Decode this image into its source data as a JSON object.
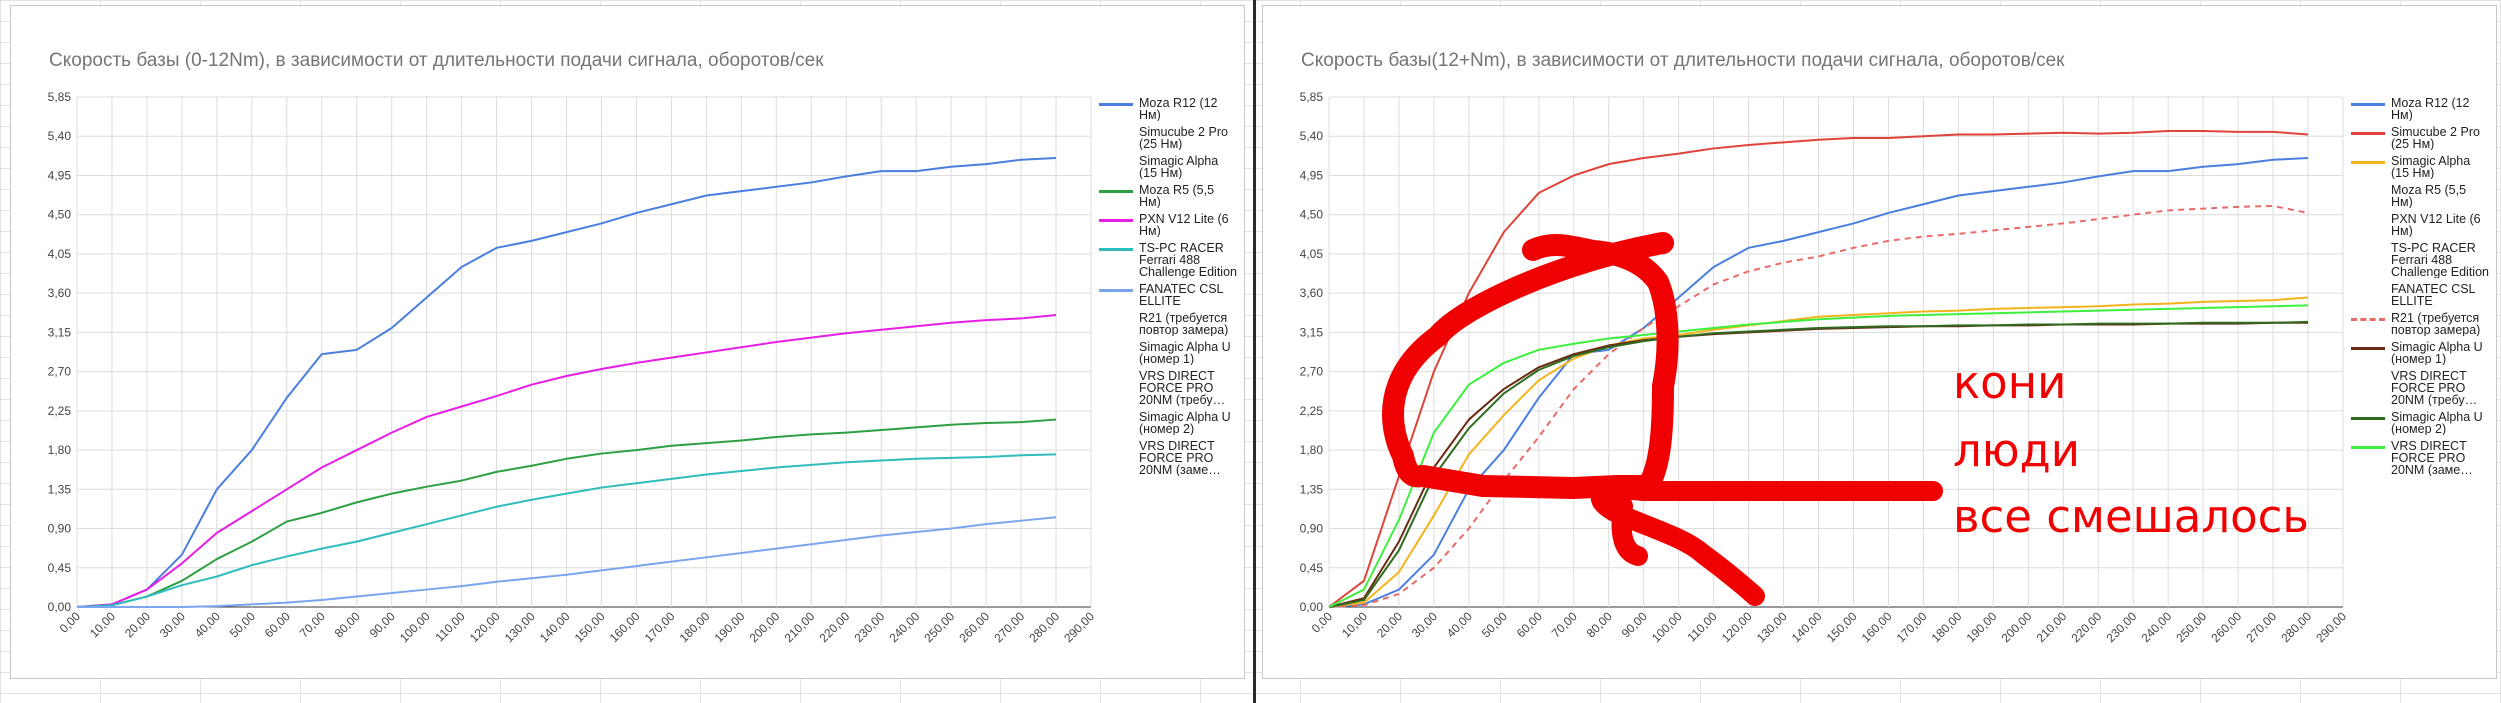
{
  "chart_data": [
    {
      "type": "line",
      "title": "Скорость базы (0-12Nm), в зависимости от длительности подачи сигнала, оборотов/сек",
      "xlabel": "",
      "ylabel": "",
      "xlim": [
        0,
        290
      ],
      "ylim": [
        0,
        5.85
      ],
      "x_ticks": [
        "0,00",
        "10,00",
        "20,00",
        "30,00",
        "40,00",
        "50,00",
        "60,00",
        "70,00",
        "80,00",
        "90,00",
        "100,00",
        "110,00",
        "120,00",
        "130,00",
        "140,00",
        "150,00",
        "160,00",
        "170,00",
        "180,00",
        "190,00",
        "200,00",
        "210,00",
        "220,00",
        "230,00",
        "240,00",
        "250,00",
        "260,00",
        "270,00",
        "280,00",
        "290,00"
      ],
      "y_ticks": [
        "0,00",
        "0,45",
        "0,90",
        "1,35",
        "1,80",
        "2,25",
        "2,70",
        "3,15",
        "3,60",
        "4,05",
        "4,50",
        "4,95",
        "5,40",
        "5,85"
      ],
      "grid": true,
      "legend_position": "right",
      "legend": [
        {
          "label": "Moza R12 (12 Нм)",
          "color": "#4a7fe0",
          "style": "solid"
        },
        {
          "label": "Simucube 2 Pro (25 Нм)",
          "color": "",
          "style": "none"
        },
        {
          "label": "Simagic Alpha (15 Нм)",
          "color": "",
          "style": "none"
        },
        {
          "label": "Moza R5 (5,5 Нм)",
          "color": "#2ea043",
          "style": "solid"
        },
        {
          "label": "PXN V12 Lite (6 Нм)",
          "color": "#e61ee6",
          "style": "solid"
        },
        {
          "label": "TS-PC RACER Ferrari 488 Challenge Edition",
          "color": "#2fbcbc",
          "style": "solid"
        },
        {
          "label": "FANATEC CSL ELLITE",
          "color": "#7aa6f0",
          "style": "solid"
        },
        {
          "label": "R21 (требуется повтор замера)",
          "color": "",
          "style": "none"
        },
        {
          "label": "Simagic Alpha U (номер 1)",
          "color": "",
          "style": "none"
        },
        {
          "label": "VRS DIRECT FORCE PRO 20NM (требу…",
          "color": "",
          "style": "none"
        },
        {
          "label": "Simagic Alpha U (номер 2)",
          "color": "",
          "style": "none"
        },
        {
          "label": "VRS DIRECT FORCE PRO 20NM (заме…",
          "color": "",
          "style": "none"
        }
      ],
      "x": [
        0,
        10,
        20,
        30,
        40,
        50,
        60,
        70,
        80,
        90,
        100,
        110,
        120,
        130,
        140,
        150,
        160,
        170,
        180,
        190,
        200,
        210,
        220,
        230,
        240,
        250,
        260,
        270,
        280
      ],
      "series": [
        {
          "name": "Moza R12 (12 Нм)",
          "color": "#4a7fe0",
          "dash": false,
          "values": [
            0,
            0.03,
            0.2,
            0.6,
            1.35,
            1.8,
            2.4,
            2.9,
            2.95,
            3.2,
            3.55,
            3.9,
            4.12,
            4.2,
            4.3,
            4.4,
            4.52,
            4.62,
            4.72,
            4.77,
            4.82,
            4.87,
            4.94,
            5.0,
            5.0,
            5.05,
            5.08,
            5.13,
            5.15
          ]
        },
        {
          "name": "Moza R5 (5,5 Нм)",
          "color": "#2ea043",
          "dash": false,
          "values": [
            0,
            0.02,
            0.12,
            0.3,
            0.55,
            0.75,
            0.98,
            1.08,
            1.2,
            1.3,
            1.38,
            1.45,
            1.55,
            1.62,
            1.7,
            1.76,
            1.8,
            1.85,
            1.88,
            1.91,
            1.95,
            1.98,
            2.0,
            2.03,
            2.06,
            2.09,
            2.11,
            2.12,
            2.15
          ]
        },
        {
          "name": "PXN V12 Lite (6 Нм)",
          "color": "#e61ee6",
          "dash": false,
          "values": [
            0,
            0.03,
            0.2,
            0.5,
            0.85,
            1.1,
            1.35,
            1.6,
            1.8,
            2.0,
            2.18,
            2.3,
            2.42,
            2.55,
            2.65,
            2.73,
            2.8,
            2.86,
            2.92,
            2.98,
            3.04,
            3.09,
            3.14,
            3.18,
            3.22,
            3.26,
            3.29,
            3.31,
            3.35
          ]
        },
        {
          "name": "TS-PC RACER Ferrari 488 Challenge Edition",
          "color": "#2fbcbc",
          "dash": false,
          "values": [
            0,
            0.02,
            0.12,
            0.25,
            0.35,
            0.48,
            0.58,
            0.67,
            0.75,
            0.85,
            0.95,
            1.05,
            1.15,
            1.23,
            1.3,
            1.37,
            1.42,
            1.47,
            1.52,
            1.56,
            1.6,
            1.63,
            1.66,
            1.68,
            1.7,
            1.71,
            1.72,
            1.74,
            1.75
          ]
        },
        {
          "name": "FANATEC CSL ELLITE",
          "color": "#7aa6f0",
          "dash": false,
          "values": [
            0,
            0,
            0,
            0,
            0.01,
            0.03,
            0.05,
            0.08,
            0.12,
            0.16,
            0.2,
            0.24,
            0.29,
            0.33,
            0.37,
            0.42,
            0.47,
            0.52,
            0.57,
            0.62,
            0.67,
            0.72,
            0.77,
            0.82,
            0.86,
            0.9,
            0.95,
            0.99,
            1.03
          ]
        }
      ]
    },
    {
      "type": "line",
      "title": "Скорость базы(12+Nm), в зависимости от длительности подачи сигнала, оборотов/сек",
      "xlabel": "",
      "ylabel": "",
      "xlim": [
        0,
        290
      ],
      "ylim": [
        0,
        5.85
      ],
      "x_ticks": [
        "0,00",
        "10,00",
        "20,00",
        "30,00",
        "40,00",
        "50,00",
        "60,00",
        "70,00",
        "80,00",
        "90,00",
        "100,00",
        "110,00",
        "120,00",
        "130,00",
        "140,00",
        "150,00",
        "160,00",
        "170,00",
        "180,00",
        "190,00",
        "200,00",
        "210,00",
        "220,00",
        "230,00",
        "240,00",
        "250,00",
        "260,00",
        "270,00",
        "280,00",
        "290,00"
      ],
      "y_ticks": [
        "0,00",
        "0,45",
        "0,90",
        "1,35",
        "1,80",
        "2,25",
        "2,70",
        "3,15",
        "3,60",
        "4,05",
        "4,50",
        "4,95",
        "5,40",
        "5,85"
      ],
      "grid": true,
      "legend_position": "right",
      "legend": [
        {
          "label": "Moza R12 (12 Нм)",
          "color": "#4a7fe0",
          "style": "solid"
        },
        {
          "label": "Simucube 2 Pro (25 Нм)",
          "color": "#e0433a",
          "style": "solid"
        },
        {
          "label": "Simagic Alpha (15 Нм)",
          "color": "#f2b31d",
          "style": "solid"
        },
        {
          "label": "Moza R5 (5,5 Нм)",
          "color": "",
          "style": "none"
        },
        {
          "label": "PXN V12 Lite (6 Нм)",
          "color": "",
          "style": "none"
        },
        {
          "label": "TS-PC RACER Ferrari 488 Challenge Edition",
          "color": "",
          "style": "none"
        },
        {
          "label": "FANATEC CSL ELLITE",
          "color": "",
          "style": "none"
        },
        {
          "label": "R21 (требуется повтор замера)",
          "color": "#e86a6a",
          "style": "dashed"
        },
        {
          "label": "Simagic Alpha U (номер 1)",
          "color": "#6b2a14",
          "style": "solid"
        },
        {
          "label": "VRS DIRECT FORCE PRO 20NM (требу…",
          "color": "",
          "style": "none"
        },
        {
          "label": "Simagic Alpha U (номер 2)",
          "color": "#2e6b1e",
          "style": "solid"
        },
        {
          "label": "VRS DIRECT FORCE PRO 20NM (заме…",
          "color": "#3ef03e",
          "style": "solid"
        }
      ],
      "x": [
        0,
        10,
        20,
        30,
        40,
        50,
        60,
        70,
        80,
        90,
        100,
        110,
        120,
        130,
        140,
        150,
        160,
        170,
        180,
        190,
        200,
        210,
        220,
        230,
        240,
        250,
        260,
        270,
        280
      ],
      "series": [
        {
          "name": "Moza R12 (12 Нм)",
          "color": "#4a7fe0",
          "dash": false,
          "values": [
            0,
            0.03,
            0.2,
            0.6,
            1.35,
            1.8,
            2.4,
            2.9,
            2.95,
            3.2,
            3.55,
            3.9,
            4.12,
            4.2,
            4.3,
            4.4,
            4.52,
            4.62,
            4.72,
            4.77,
            4.82,
            4.87,
            4.94,
            5.0,
            5.0,
            5.05,
            5.08,
            5.13,
            5.15
          ]
        },
        {
          "name": "Simucube 2 Pro (25 Нм)",
          "color": "#e0433a",
          "dash": false,
          "values": [
            0,
            0.3,
            1.5,
            2.7,
            3.6,
            4.3,
            4.75,
            4.95,
            5.08,
            5.15,
            5.2,
            5.26,
            5.3,
            5.33,
            5.36,
            5.38,
            5.38,
            5.4,
            5.42,
            5.42,
            5.43,
            5.44,
            5.43,
            5.44,
            5.46,
            5.46,
            5.45,
            5.45,
            5.42
          ]
        },
        {
          "name": "Simagic Alpha (15 Нм)",
          "color": "#f2b31d",
          "dash": false,
          "values": [
            0,
            0.05,
            0.4,
            1.05,
            1.75,
            2.2,
            2.6,
            2.85,
            3.0,
            3.08,
            3.12,
            3.18,
            3.23,
            3.28,
            3.33,
            3.35,
            3.37,
            3.39,
            3.4,
            3.42,
            3.43,
            3.44,
            3.45,
            3.47,
            3.48,
            3.5,
            3.51,
            3.52,
            3.55
          ]
        },
        {
          "name": "R21 (требуется повтор замера)",
          "color": "#e86a6a",
          "dash": true,
          "values": [
            0,
            0.02,
            0.15,
            0.45,
            0.9,
            1.45,
            1.95,
            2.5,
            2.9,
            3.2,
            3.45,
            3.7,
            3.85,
            3.95,
            4.02,
            4.12,
            4.2,
            4.25,
            4.28,
            4.32,
            4.36,
            4.4,
            4.45,
            4.5,
            4.55,
            4.57,
            4.59,
            4.6,
            4.52
          ]
        },
        {
          "name": "Simagic Alpha U (номер 1)",
          "color": "#6b2a14",
          "dash": false,
          "values": [
            0,
            0.1,
            0.75,
            1.6,
            2.15,
            2.5,
            2.75,
            2.9,
            3.0,
            3.06,
            3.1,
            3.13,
            3.15,
            3.17,
            3.19,
            3.2,
            3.21,
            3.22,
            3.22,
            3.23,
            3.23,
            3.24,
            3.24,
            3.24,
            3.25,
            3.25,
            3.25,
            3.26,
            3.26
          ]
        },
        {
          "name": "Simagic Alpha U (номер 2)",
          "color": "#2e6b1e",
          "dash": false,
          "values": [
            0,
            0.08,
            0.65,
            1.5,
            2.05,
            2.45,
            2.72,
            2.88,
            2.98,
            3.05,
            3.1,
            3.14,
            3.16,
            3.18,
            3.2,
            3.21,
            3.22,
            3.22,
            3.23,
            3.23,
            3.24,
            3.24,
            3.25,
            3.25,
            3.25,
            3.26,
            3.26,
            3.26,
            3.27
          ]
        },
        {
          "name": "VRS DIRECT FORCE PRO 20NM (заме…",
          "color": "#3ef03e",
          "dash": false,
          "values": [
            0,
            0.2,
            1.0,
            2.0,
            2.55,
            2.8,
            2.95,
            3.02,
            3.08,
            3.12,
            3.16,
            3.2,
            3.24,
            3.27,
            3.3,
            3.32,
            3.34,
            3.35,
            3.36,
            3.37,
            3.38,
            3.39,
            3.4,
            3.41,
            3.42,
            3.43,
            3.44,
            3.45,
            3.46
          ]
        }
      ],
      "annotation": {
        "color": "#f00000",
        "lines": [
          "кони",
          "люди",
          "все смешалось"
        ]
      }
    }
  ]
}
